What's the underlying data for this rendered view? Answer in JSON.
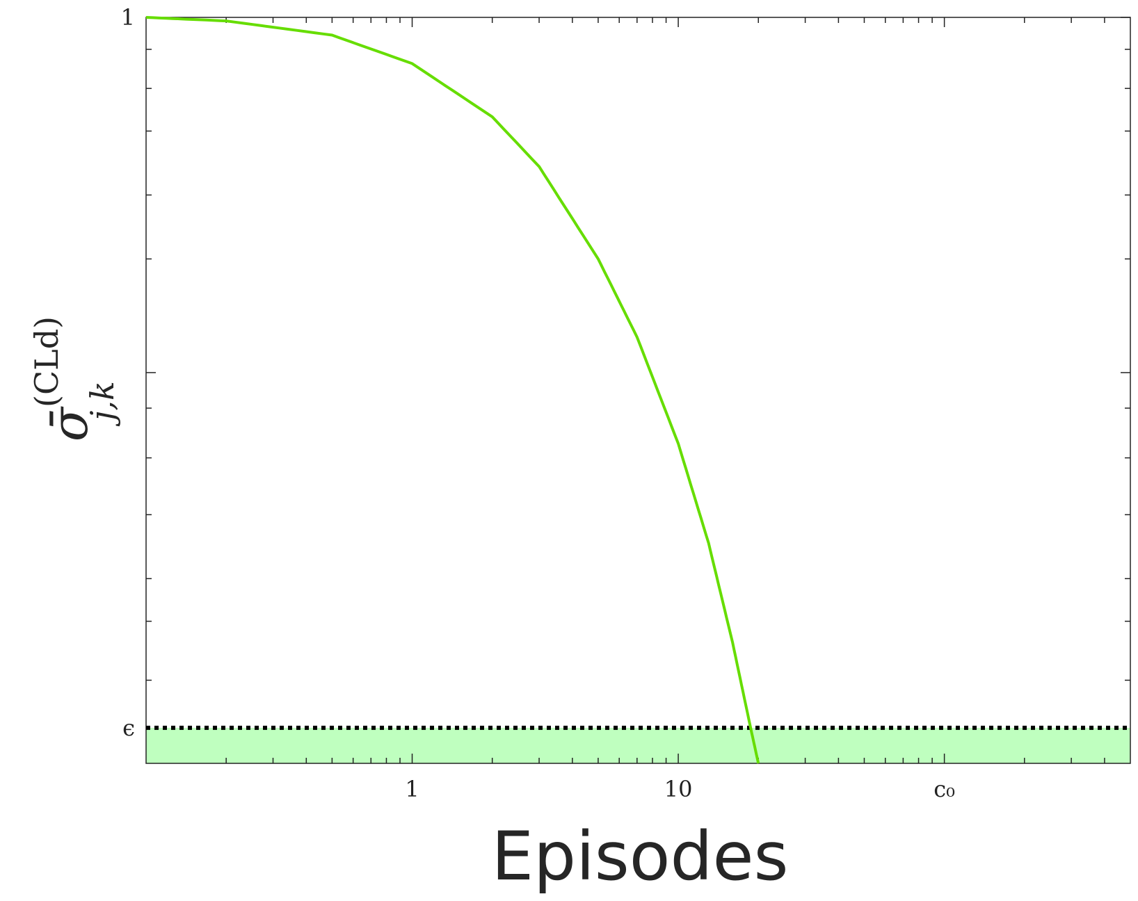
{
  "chart_data": {
    "type": "line",
    "xlabel": "Episodes",
    "ylabel": {
      "symbol": "σ̄",
      "superscript": "(CLd)",
      "subscript": "j,k"
    },
    "x_scale": "log",
    "xlim": [
      0.1,
      500
    ],
    "ylim": [
      -0.05,
      1
    ],
    "x_ticks": [
      {
        "value": 1,
        "label": "1"
      },
      {
        "value": 10,
        "label": "10"
      },
      {
        "value": 100,
        "label": "c₀"
      }
    ],
    "y_ticks": [
      {
        "value": 1,
        "label": "1"
      },
      {
        "value": 0,
        "label": "ϵ"
      }
    ],
    "series": [
      {
        "color": "#66dd00",
        "x": [
          0.1,
          0.2,
          0.5,
          1,
          2,
          3,
          5,
          7,
          10,
          13,
          16,
          18.7,
          20
        ],
        "y": [
          1.0,
          0.995,
          0.975,
          0.935,
          0.86,
          0.79,
          0.66,
          0.55,
          0.4,
          0.26,
          0.12,
          0.0,
          -0.05
        ]
      }
    ],
    "threshold": {
      "value": 0,
      "label": "ϵ",
      "style": "dotted",
      "color": "#000000"
    },
    "shaded_region": {
      "from": -0.05,
      "to": 0,
      "color": "#bfffbf"
    },
    "grid": false,
    "legend": "none"
  }
}
